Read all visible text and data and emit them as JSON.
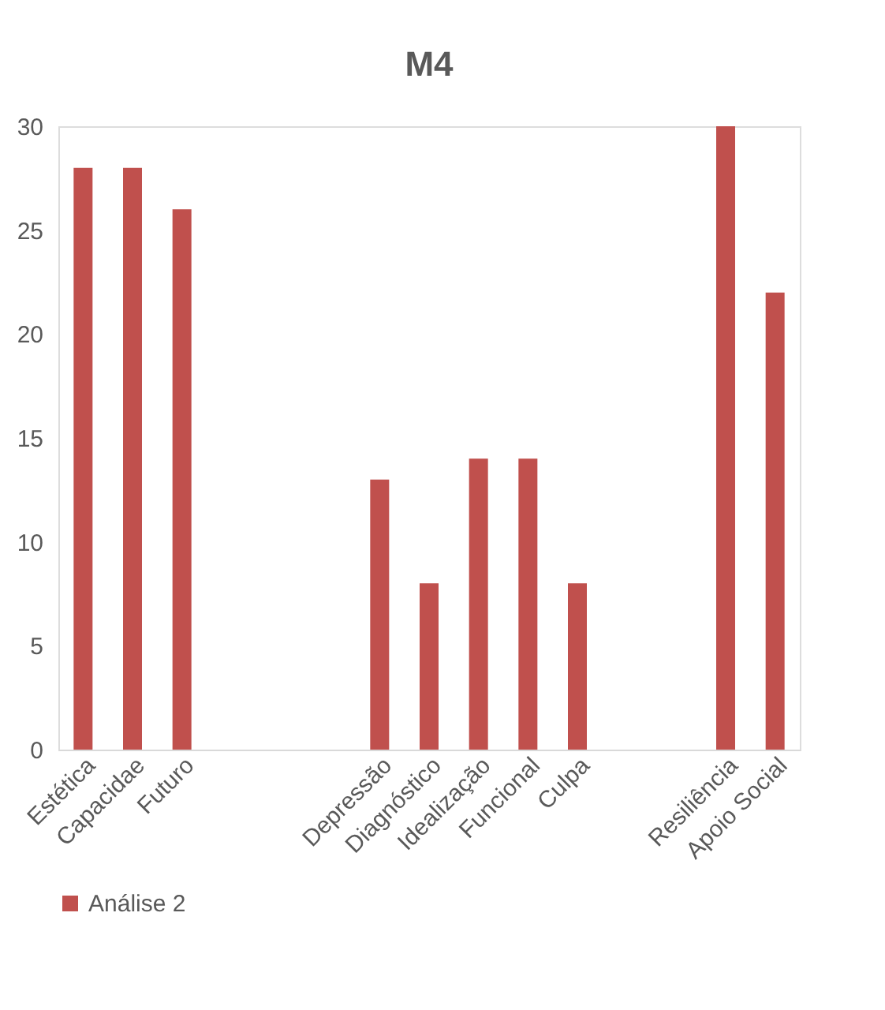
{
  "chart_data": {
    "type": "bar",
    "title": "M4",
    "categories": [
      "Estética",
      "Capacidae",
      "Futuro",
      null,
      null,
      null,
      "Depressão",
      "Diagnóstico",
      "Idealização",
      "Funcional",
      "Culpa",
      null,
      null,
      "Resiliência",
      "Apoio Social"
    ],
    "series": [
      {
        "name": "Análise 2",
        "color": "#c0504d",
        "values": [
          28,
          28,
          26,
          null,
          null,
          null,
          13,
          8,
          14,
          14,
          8,
          null,
          null,
          30,
          22
        ]
      }
    ],
    "ylim": [
      0,
      30
    ],
    "yticks": [
      0,
      5,
      10,
      15,
      20,
      25,
      30
    ],
    "grid": false,
    "legend": "bottom"
  }
}
